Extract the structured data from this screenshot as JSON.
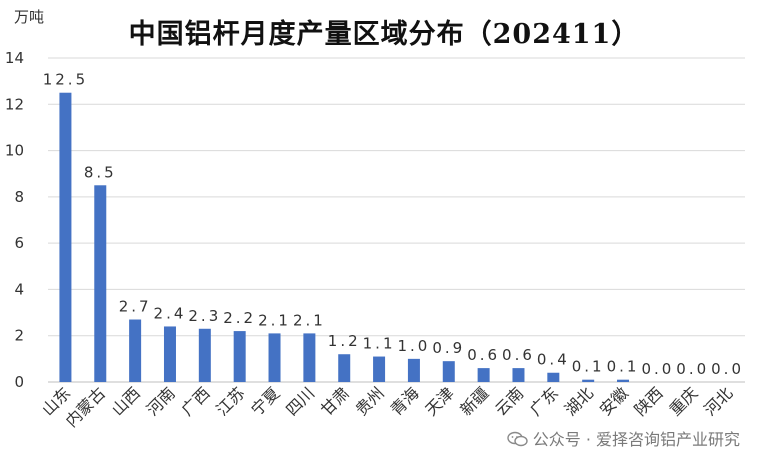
{
  "chart_data": {
    "type": "bar",
    "title": "中国铝杆月度产量区域分布（202411）",
    "unit": "万吨",
    "ylim": [
      0,
      14
    ],
    "y_ticks": [
      "0",
      "2",
      "4",
      "6",
      "8",
      "10",
      "12",
      "14"
    ],
    "y_tick_values": [
      0,
      2,
      4,
      6,
      8,
      10,
      12,
      14
    ],
    "grid": true,
    "categories": [
      "山东",
      "内蒙古",
      "山西",
      "河南",
      "广西",
      "江苏",
      "宁夏",
      "四川",
      "甘肃",
      "贵州",
      "青海",
      "天津",
      "新疆",
      "云南",
      "广东",
      "湖北",
      "安徽",
      "陕西",
      "重庆",
      "河北"
    ],
    "values": [
      12.5,
      8.5,
      2.7,
      2.4,
      2.3,
      2.2,
      2.1,
      2.1,
      1.2,
      1.1,
      1.0,
      0.9,
      0.6,
      0.6,
      0.4,
      0.1,
      0.1,
      0.0,
      0.0,
      0.0
    ],
    "data_labels": [
      "12.5",
      "8.5",
      "2.7",
      "2.4",
      "2.3",
      "2.2",
      "2.1",
      "2.1",
      "1.2",
      "1.1",
      "1.0",
      "0.9",
      "0.6",
      "0.6",
      "0.4",
      "0.1",
      "0.1",
      "0.0",
      "0.0",
      "0.0"
    ],
    "bar_color": "#4472C4",
    "grid_color": "#d9d9d9"
  },
  "watermark": {
    "text": "公众号 · 爱择咨询铝产业研究",
    "icon": "wechat-icon"
  }
}
